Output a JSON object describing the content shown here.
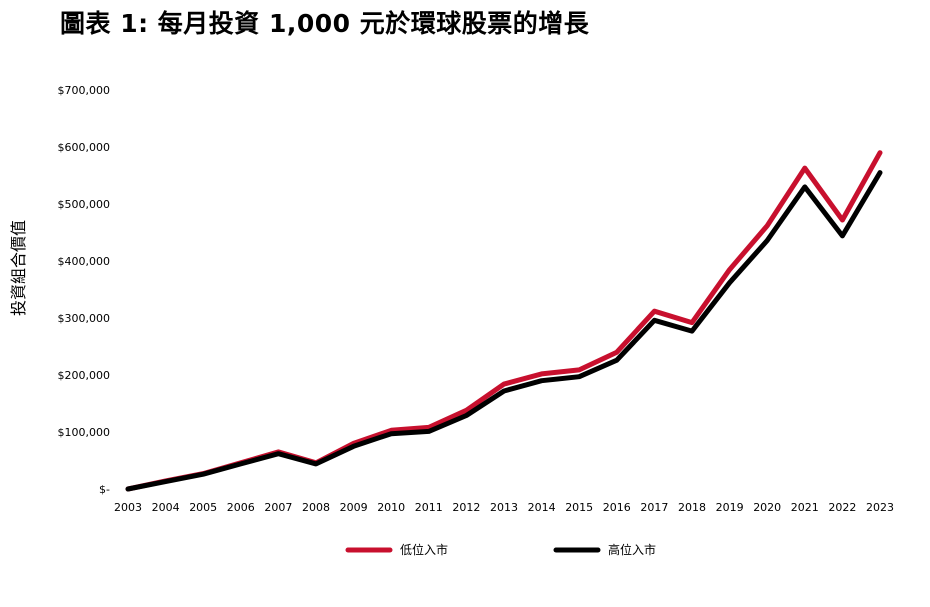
{
  "chart_data": {
    "type": "line",
    "title": "圖表 1: 每月投資 1,000 元於環球股票的增長",
    "xlabel": "",
    "ylabel": "投資組合價值",
    "ylim": [
      0,
      700000
    ],
    "yticks": [
      0,
      100000,
      200000,
      300000,
      400000,
      500000,
      600000,
      700000
    ],
    "ytick_labels": [
      "$-",
      "$100,000",
      "$200,000",
      "$300,000",
      "$400,000",
      "$500,000",
      "$600,000",
      "$700,000"
    ],
    "x": [
      "2003",
      "2004",
      "2005",
      "2006",
      "2007",
      "2008",
      "2009",
      "2010",
      "2011",
      "2012",
      "2013",
      "2014",
      "2015",
      "2016",
      "2017",
      "2018",
      "2019",
      "2020",
      "2021",
      "2022",
      "2023"
    ],
    "grid": false,
    "legend": "bottom",
    "series": [
      {
        "name": "低位入市",
        "color": "#c8102e",
        "values": [
          0,
          14000,
          27000,
          46000,
          65000,
          46000,
          80000,
          103000,
          108000,
          138000,
          184000,
          202000,
          209000,
          240000,
          312000,
          292000,
          385000,
          462000,
          563000,
          472000,
          590000
        ]
      },
      {
        "name": "高位入市",
        "color": "#000000",
        "values": [
          0,
          13000,
          26000,
          44000,
          62000,
          44000,
          75000,
          97000,
          101000,
          129000,
          172000,
          190000,
          197000,
          226000,
          296000,
          277000,
          362000,
          436000,
          530000,
          444000,
          555000
        ]
      }
    ]
  }
}
